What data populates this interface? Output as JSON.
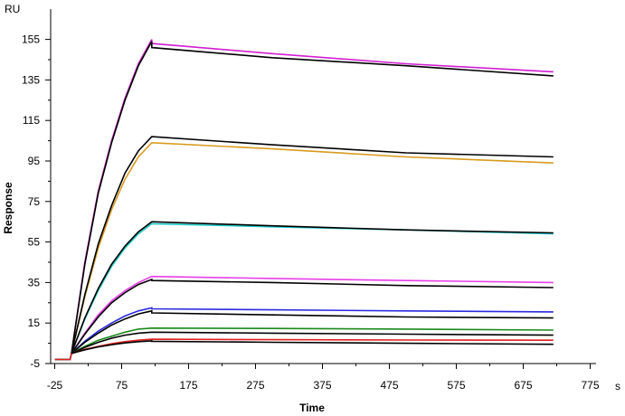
{
  "chart_data": {
    "type": "line",
    "title": "",
    "xlabel": "Time",
    "ylabel": "Response",
    "x_unit": "s",
    "y_unit": "RU",
    "xlim": [
      -25,
      795
    ],
    "ylim": [
      -5,
      170
    ],
    "xticks": [
      -25,
      75,
      175,
      275,
      375,
      475,
      575,
      675,
      775
    ],
    "yticks": [
      -5,
      15,
      35,
      55,
      75,
      95,
      115,
      135,
      155
    ],
    "grid": false,
    "legend": "none",
    "phases": {
      "injection_start": 0,
      "injection_end": 120,
      "run_end": 720
    },
    "series": [
      {
        "color": "#d21fd2",
        "fit_color": "#000000",
        "baseline": -3,
        "assoc": [
          [
            0,
            0
          ],
          [
            20,
            45
          ],
          [
            40,
            80
          ],
          [
            60,
            105
          ],
          [
            80,
            126
          ],
          [
            100,
            143
          ],
          [
            120,
            155
          ]
        ],
        "dissoc": [
          [
            120,
            153
          ],
          [
            300,
            148
          ],
          [
            500,
            143
          ],
          [
            720,
            139
          ]
        ],
        "fit_assoc": [
          [
            0,
            0
          ],
          [
            20,
            44
          ],
          [
            40,
            79
          ],
          [
            60,
            104
          ],
          [
            80,
            125
          ],
          [
            100,
            142
          ],
          [
            120,
            154
          ]
        ],
        "fit_dissoc": [
          [
            120,
            151
          ],
          [
            300,
            146
          ],
          [
            500,
            142
          ],
          [
            720,
            137
          ]
        ]
      },
      {
        "color": "#d99a1e",
        "fit_color": "#000000",
        "baseline": -3,
        "assoc": [
          [
            0,
            0
          ],
          [
            20,
            28
          ],
          [
            40,
            52
          ],
          [
            60,
            71
          ],
          [
            80,
            86
          ],
          [
            100,
            97
          ],
          [
            120,
            104
          ]
        ],
        "dissoc": [
          [
            120,
            104
          ],
          [
            300,
            101
          ],
          [
            500,
            97
          ],
          [
            720,
            94
          ]
        ],
        "fit_assoc": [
          [
            0,
            0
          ],
          [
            20,
            29
          ],
          [
            40,
            54
          ],
          [
            60,
            73
          ],
          [
            80,
            89
          ],
          [
            100,
            100
          ],
          [
            120,
            107
          ]
        ],
        "fit_dissoc": [
          [
            120,
            107
          ],
          [
            300,
            103
          ],
          [
            500,
            99
          ],
          [
            720,
            97
          ]
        ]
      },
      {
        "color": "#1fc9c9",
        "fit_color": "#000000",
        "baseline": -3,
        "assoc": [
          [
            0,
            0
          ],
          [
            20,
            17
          ],
          [
            40,
            31
          ],
          [
            60,
            43
          ],
          [
            80,
            52
          ],
          [
            100,
            59
          ],
          [
            120,
            64
          ]
        ],
        "dissoc": [
          [
            120,
            64
          ],
          [
            300,
            62.5
          ],
          [
            500,
            61
          ],
          [
            720,
            59
          ]
        ],
        "fit_assoc": [
          [
            0,
            0
          ],
          [
            20,
            17.5
          ],
          [
            40,
            32
          ],
          [
            60,
            44
          ],
          [
            80,
            53
          ],
          [
            100,
            60
          ],
          [
            120,
            65
          ]
        ],
        "fit_dissoc": [
          [
            120,
            65
          ],
          [
            300,
            63
          ],
          [
            500,
            61
          ],
          [
            720,
            59.5
          ]
        ]
      },
      {
        "color": "#e83ee8",
        "fit_color": "#000000",
        "baseline": -3,
        "assoc": [
          [
            0,
            0
          ],
          [
            20,
            10
          ],
          [
            40,
            19
          ],
          [
            60,
            26
          ],
          [
            80,
            31
          ],
          [
            100,
            35
          ],
          [
            120,
            38
          ]
        ],
        "dissoc": [
          [
            120,
            38
          ],
          [
            300,
            37
          ],
          [
            500,
            36
          ],
          [
            720,
            35
          ]
        ],
        "fit_assoc": [
          [
            0,
            0
          ],
          [
            20,
            9.5
          ],
          [
            40,
            18
          ],
          [
            60,
            25
          ],
          [
            80,
            30
          ],
          [
            100,
            34
          ],
          [
            120,
            36.5
          ]
        ],
        "fit_dissoc": [
          [
            120,
            36
          ],
          [
            300,
            35
          ],
          [
            500,
            33.5
          ],
          [
            720,
            32.5
          ]
        ]
      },
      {
        "color": "#2a2ae0",
        "fit_color": "#000000",
        "baseline": -3,
        "assoc": [
          [
            0,
            0
          ],
          [
            20,
            6
          ],
          [
            40,
            11
          ],
          [
            60,
            15
          ],
          [
            80,
            18.5
          ],
          [
            100,
            21
          ],
          [
            120,
            22.5
          ]
        ],
        "dissoc": [
          [
            120,
            22
          ],
          [
            300,
            21.5
          ],
          [
            500,
            21
          ],
          [
            720,
            20.5
          ]
        ],
        "fit_assoc": [
          [
            0,
            0
          ],
          [
            20,
            5.5
          ],
          [
            40,
            10
          ],
          [
            60,
            14
          ],
          [
            80,
            17
          ],
          [
            100,
            19.5
          ],
          [
            120,
            21
          ]
        ],
        "fit_dissoc": [
          [
            120,
            20
          ],
          [
            300,
            19
          ],
          [
            500,
            18
          ],
          [
            720,
            17.5
          ]
        ]
      },
      {
        "color": "#1a8a1a",
        "fit_color": "#000000",
        "baseline": -3,
        "assoc": [
          [
            0,
            0
          ],
          [
            20,
            3.5
          ],
          [
            40,
            6.5
          ],
          [
            60,
            8.5
          ],
          [
            80,
            10.5
          ],
          [
            100,
            12
          ],
          [
            120,
            12.5
          ]
        ],
        "dissoc": [
          [
            120,
            12.5
          ],
          [
            300,
            12.3
          ],
          [
            500,
            12
          ],
          [
            720,
            11.5
          ]
        ],
        "fit_assoc": [
          [
            0,
            0
          ],
          [
            20,
            3
          ],
          [
            40,
            5.5
          ],
          [
            60,
            7.5
          ],
          [
            80,
            9
          ],
          [
            100,
            10
          ],
          [
            120,
            10.5
          ]
        ],
        "fit_dissoc": [
          [
            120,
            10.5
          ],
          [
            300,
            10
          ],
          [
            500,
            9.5
          ],
          [
            720,
            9
          ]
        ]
      },
      {
        "color": "#e02020",
        "fit_color": "#000000",
        "baseline": -3,
        "assoc": [
          [
            0,
            0
          ],
          [
            20,
            2
          ],
          [
            40,
            3.5
          ],
          [
            60,
            4.8
          ],
          [
            80,
            5.8
          ],
          [
            100,
            6.5
          ],
          [
            120,
            7
          ]
        ],
        "dissoc": [
          [
            120,
            7
          ],
          [
            300,
            6.8
          ],
          [
            500,
            6.6
          ],
          [
            720,
            6.5
          ]
        ],
        "fit_assoc": [
          [
            0,
            0
          ],
          [
            20,
            1.8
          ],
          [
            40,
            3.2
          ],
          [
            60,
            4.3
          ],
          [
            80,
            5.2
          ],
          [
            100,
            5.8
          ],
          [
            120,
            6.2
          ]
        ],
        "fit_dissoc": [
          [
            120,
            6
          ],
          [
            300,
            5.5
          ],
          [
            500,
            5
          ],
          [
            720,
            4.5
          ]
        ]
      }
    ]
  }
}
